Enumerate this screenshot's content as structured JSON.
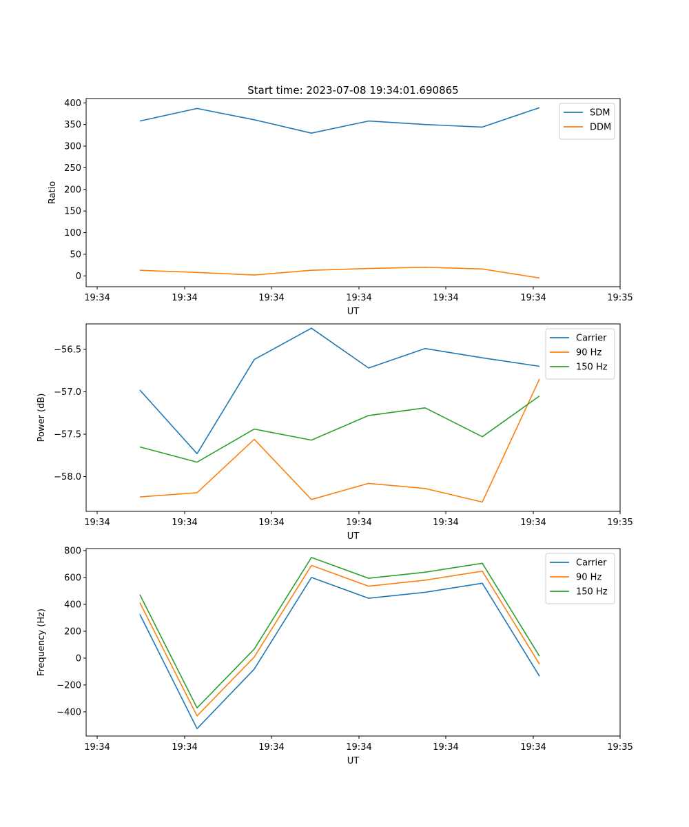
{
  "figure": {
    "title": "Start time: 2023-07-08 19:34:01.690865"
  },
  "chart_data": [
    {
      "type": "line",
      "xlabel": "UT",
      "ylabel": "Ratio",
      "x_tick_labels": [
        "19:34",
        "19:34",
        "19:34",
        "19:34",
        "19:34",
        "19:34",
        "19:35"
      ],
      "y_ticks": [
        0,
        50,
        100,
        150,
        200,
        250,
        300,
        350,
        400
      ],
      "y_tick_labels": [
        "0",
        "50",
        "100",
        "150",
        "200",
        "250",
        "300",
        "350",
        "400"
      ],
      "ylim": [
        -25,
        410
      ],
      "legend_position": "top-right",
      "series": [
        {
          "name": "SDM",
          "color": "#1f77b4",
          "values": [
            358,
            387,
            361,
            330,
            358,
            350,
            344,
            389
          ]
        },
        {
          "name": "DDM",
          "color": "#ff7f0e",
          "values": [
            13,
            8,
            2,
            13,
            17,
            20,
            16,
            -5
          ]
        }
      ]
    },
    {
      "type": "line",
      "xlabel": "UT",
      "ylabel": "Power (dB)",
      "x_tick_labels": [
        "19:34",
        "19:34",
        "19:34",
        "19:34",
        "19:34",
        "19:34",
        "19:35"
      ],
      "y_ticks": [
        -58.0,
        -57.5,
        -57.0,
        -56.5
      ],
      "y_tick_labels": [
        "−58.0",
        "−57.5",
        "−57.0",
        "−56.5"
      ],
      "ylim": [
        -58.41,
        -56.2
      ],
      "legend_position": "top-right",
      "series": [
        {
          "name": "Carrier",
          "color": "#1f77b4",
          "values": [
            -56.98,
            -57.73,
            -56.62,
            -56.25,
            -56.72,
            -56.49,
            -56.6,
            -56.7
          ]
        },
        {
          "name": "90 Hz",
          "color": "#ff7f0e",
          "values": [
            -58.24,
            -58.19,
            -57.56,
            -58.27,
            -58.08,
            -58.14,
            -58.3,
            -56.85
          ]
        },
        {
          "name": "150 Hz",
          "color": "#2ca02c",
          "values": [
            -57.65,
            -57.83,
            -57.44,
            -57.57,
            -57.28,
            -57.19,
            -57.53,
            -57.05
          ]
        }
      ]
    },
    {
      "type": "line",
      "xlabel": "UT",
      "ylabel": "Frequency (Hz)",
      "x_tick_labels": [
        "19:34",
        "19:34",
        "19:34",
        "19:34",
        "19:34",
        "19:34",
        "19:35"
      ],
      "y_ticks": [
        -400,
        -200,
        0,
        200,
        400,
        600,
        800
      ],
      "y_tick_labels": [
        "−400",
        "−200",
        "0",
        "200",
        "400",
        "600",
        "800"
      ],
      "ylim": [
        -580,
        815
      ],
      "legend_position": "top-right",
      "series": [
        {
          "name": "Carrier",
          "color": "#1f77b4",
          "values": [
            325,
            -525,
            -82,
            600,
            445,
            490,
            557,
            -135
          ]
        },
        {
          "name": "90 Hz",
          "color": "#ff7f0e",
          "values": [
            413,
            -430,
            8,
            690,
            535,
            580,
            647,
            -45
          ]
        },
        {
          "name": "150 Hz",
          "color": "#2ca02c",
          "values": [
            472,
            -371,
            67,
            749,
            594,
            639,
            706,
            14
          ]
        }
      ]
    }
  ]
}
